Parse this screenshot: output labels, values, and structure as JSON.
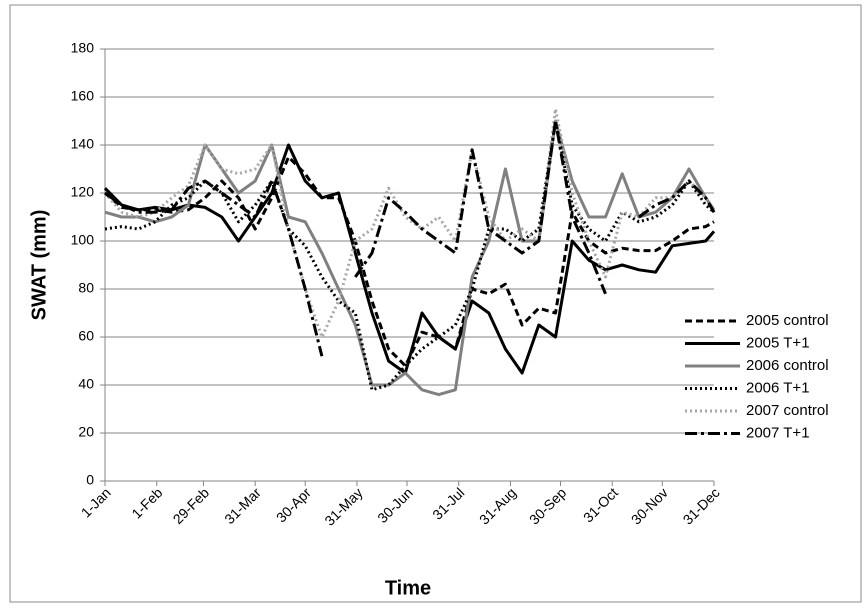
{
  "chart_data": {
    "type": "line",
    "x_label": "Time",
    "y_label": "SWAT (mm)",
    "x": [
      1,
      11,
      21,
      31,
      41,
      51,
      61,
      71,
      81,
      91,
      101,
      111,
      121,
      131,
      141,
      151,
      161,
      171,
      181,
      191,
      201,
      211,
      221,
      231,
      241,
      251,
      261,
      271,
      281,
      291,
      301,
      311,
      321,
      331,
      341,
      351,
      361,
      366
    ],
    "xlim": [
      1,
      366
    ],
    "xticks": [
      {
        "value": 1,
        "label": "1-Jan"
      },
      {
        "value": 32,
        "label": "1-Feb"
      },
      {
        "value": 60,
        "label": "29-Feb"
      },
      {
        "value": 91,
        "label": "31-Mar"
      },
      {
        "value": 121,
        "label": "30-Apr"
      },
      {
        "value": 152,
        "label": "31-May"
      },
      {
        "value": 182,
        "label": "30-Jun"
      },
      {
        "value": 213,
        "label": "31-Jul"
      },
      {
        "value": 244,
        "label": "31-Aug"
      },
      {
        "value": 274,
        "label": "30-Sep"
      },
      {
        "value": 305,
        "label": "31-Oct"
      },
      {
        "value": 335,
        "label": "30-Nov"
      },
      {
        "value": 366,
        "label": "31-Dec"
      }
    ],
    "ylim": [
      0,
      180
    ],
    "yticks": [
      0,
      20,
      40,
      60,
      80,
      100,
      120,
      140,
      160,
      180
    ],
    "grid": true,
    "legend": "right",
    "series": [
      {
        "name": "2005 control",
        "color": "#000000",
        "style": "dashed",
        "values": [
          120,
          114,
          113,
          113,
          112,
          113,
          118,
          125,
          118,
          105,
          118,
          135,
          128,
          118,
          118,
          100,
          75,
          55,
          48,
          62,
          60,
          55,
          80,
          78,
          82,
          65,
          72,
          70,
          112,
          100,
          95,
          97,
          96,
          96,
          100,
          105,
          106,
          108
        ]
      },
      {
        "name": "2005 T+1",
        "color": "#000000",
        "style": "solid",
        "values": [
          122,
          115,
          113,
          114,
          113,
          115,
          114,
          110,
          100,
          110,
          120,
          140,
          125,
          118,
          120,
          95,
          70,
          50,
          45,
          70,
          60,
          55,
          75,
          70,
          55,
          45,
          65,
          60,
          100,
          92,
          88,
          90,
          88,
          87,
          98,
          99,
          100,
          104
        ]
      },
      {
        "name": "2006 control",
        "color": "#808080",
        "style": "solid",
        "values": [
          112,
          110,
          110,
          108,
          110,
          115,
          140,
          130,
          120,
          125,
          140,
          110,
          108,
          95,
          80,
          65,
          40,
          40,
          45,
          38,
          36,
          38,
          85,
          100,
          130,
          100,
          100,
          150,
          125,
          110,
          110,
          128,
          110,
          112,
          118,
          130,
          118,
          113
        ]
      },
      {
        "name": "2006 T+1",
        "color": "#000000",
        "style": "dotted",
        "values": [
          105,
          106,
          105,
          108,
          115,
          118,
          125,
          120,
          108,
          115,
          125,
          105,
          98,
          85,
          75,
          70,
          38,
          40,
          48,
          55,
          60,
          65,
          80,
          105,
          105,
          100,
          105,
          150,
          115,
          105,
          100,
          112,
          108,
          110,
          115,
          125,
          115,
          112
        ]
      },
      {
        "name": "2007 control",
        "color": "#a6a6a6",
        "style": "dotted",
        "values": [
          120,
          112,
          110,
          112,
          118,
          123,
          140,
          130,
          128,
          130,
          140,
          105,
          80,
          60,
          75,
          100,
          105,
          122,
          110,
          105,
          110,
          100,
          138,
          110,
          100,
          105,
          100,
          155,
          120,
          100,
          85,
          112,
          110,
          118,
          118,
          125,
          118,
          112
        ]
      },
      {
        "name": "2007 T+1",
        "color": "#000000",
        "style": "dashdot",
        "values": [
          120,
          115,
          112,
          112,
          113,
          122,
          125,
          120,
          115,
          110,
          125,
          105,
          80,
          52,
          null,
          85,
          95,
          118,
          112,
          105,
          100,
          95,
          138,
          105,
          100,
          95,
          100,
          150,
          110,
          95,
          78,
          null,
          110,
          115,
          118,
          125,
          118,
          112
        ]
      }
    ]
  }
}
